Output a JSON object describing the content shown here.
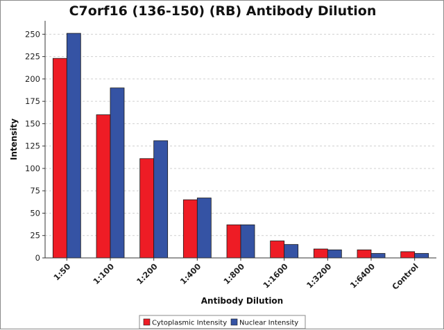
{
  "chart_data": {
    "type": "bar",
    "title": "C7orf16 (136-150) (RB) Antibody Dilution",
    "xlabel": "Antibody Dilution",
    "ylabel": "Intensity",
    "categories": [
      "1:50",
      "1:100",
      "1:200",
      "1:400",
      "1:800",
      "1:1600",
      "1:3200",
      "1:6400",
      "Control"
    ],
    "series": [
      {
        "name": "Cytoplasmic Intensity",
        "color": "#ee1c25",
        "values": [
          223,
          160,
          111,
          65,
          37,
          19,
          10,
          9,
          7
        ]
      },
      {
        "name": "Nuclear Intensity",
        "color": "#3553a4",
        "values": [
          251,
          190,
          131,
          67,
          37,
          15,
          9,
          5,
          5
        ]
      }
    ],
    "ylim": [
      0,
      265
    ],
    "yticks": [
      0,
      25,
      50,
      75,
      100,
      125,
      150,
      175,
      200,
      225,
      250
    ],
    "grid": true,
    "legend_position": "bottom"
  }
}
